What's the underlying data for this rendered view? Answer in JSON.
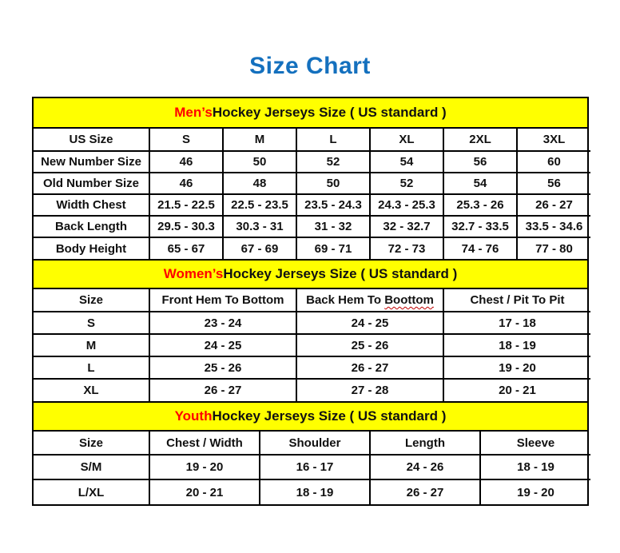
{
  "page": {
    "title": "Size Chart"
  },
  "colors": {
    "title_blue": "#1470BE",
    "band_yellow": "#FFFF00",
    "accent_red": "#FF0000",
    "squiggle_red": "#C00000",
    "border_black": "#000000"
  },
  "tables": [
    {
      "id": "men",
      "header": {
        "highlight": "Men’s",
        "rest": " Hockey Jerseys Size ( US standard )"
      },
      "columns": [
        "US Size",
        "S",
        "M",
        "L",
        "XL",
        "2XL",
        "3XL"
      ],
      "rows": [
        [
          "New Number Size",
          "46",
          "50",
          "52",
          "54",
          "56",
          "60"
        ],
        [
          "Old Number Size",
          "46",
          "48",
          "50",
          "52",
          "54",
          "56"
        ],
        [
          "Width Chest",
          "21.5 - 22.5",
          "22.5 - 23.5",
          "23.5 - 24.3",
          "24.3 - 25.3",
          "25.3 - 26",
          "26 - 27"
        ],
        [
          "Back Length",
          "29.5 - 30.3",
          "30.3 - 31",
          "31 - 32",
          "32 - 32.7",
          "32.7 - 33.5",
          "33.5 - 34.6"
        ],
        [
          "Body Height",
          "65 - 67",
          "67 - 69",
          "69 - 71",
          "72 - 73",
          "74 - 76",
          "77 - 80"
        ]
      ]
    },
    {
      "id": "women",
      "header": {
        "highlight": "Women’s",
        "rest": " Hockey Jerseys Size ( US standard )"
      },
      "columns": [
        "Size",
        "Front Hem To Bottom",
        {
          "text": "Back Hem To Boottom",
          "squiggle_word": "Boottom"
        },
        "Chest / Pit To Pit"
      ],
      "rows": [
        [
          "S",
          "23 - 24",
          "24 - 25",
          "17 - 18"
        ],
        [
          "M",
          "24 - 25",
          "25 - 26",
          "18 - 19"
        ],
        [
          "L",
          "25 - 26",
          "26 - 27",
          "19 - 20"
        ],
        [
          "XL",
          "26 - 27",
          "27 - 28",
          "20 - 21"
        ]
      ]
    },
    {
      "id": "youth",
      "header": {
        "highlight": "Youth",
        "rest": " Hockey Jerseys Size ( US standard )"
      },
      "columns": [
        "Size",
        "Chest / Width",
        "Shoulder",
        "Length",
        "Sleeve"
      ],
      "rows": [
        [
          "S/M",
          "19 - 20",
          "16 - 17",
          "24 - 26",
          "18 - 19"
        ],
        [
          "L/XL",
          "20 - 21",
          "18 - 19",
          "26 - 27",
          "19 - 20"
        ]
      ]
    }
  ]
}
